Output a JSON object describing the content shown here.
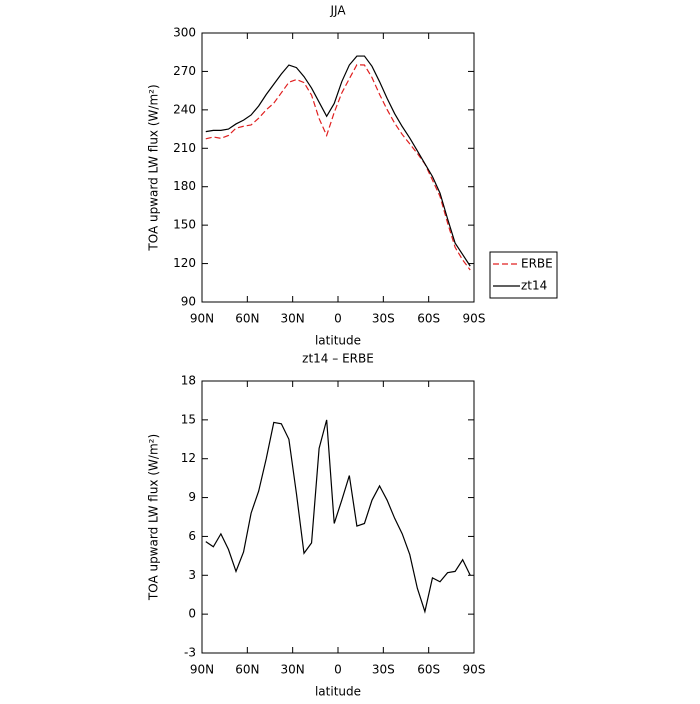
{
  "chart_data": [
    {
      "type": "line",
      "title": "JJA",
      "xlabel": "latitude",
      "ylabel": "TOA upward LW flux (W/m²)",
      "x": [
        87.5,
        82.5,
        77.5,
        72.5,
        67.5,
        62.5,
        57.5,
        52.5,
        47.5,
        42.5,
        37.5,
        32.5,
        27.5,
        22.5,
        17.5,
        12.5,
        7.5,
        2.5,
        -2.5,
        -7.5,
        -12.5,
        -17.5,
        -22.5,
        -27.5,
        -32.5,
        -37.5,
        -42.5,
        -47.5,
        -52.5,
        -57.5,
        -62.5,
        -67.5,
        -72.5,
        -77.5,
        -82.5,
        -87.5
      ],
      "series": [
        {
          "name": "ERBE",
          "color": "#e02020",
          "dashed": true,
          "values": [
            217.4,
            218.8,
            217.8,
            220,
            225.7,
            227.2,
            228.2,
            233.5,
            240,
            245.2,
            253.3,
            261.5,
            263.7,
            261.3,
            251.5,
            233.2,
            220,
            238,
            253.2,
            264.3,
            275.2,
            275,
            265.2,
            252.1,
            240.2,
            229.6,
            220.8,
            213.4,
            206,
            197.8,
            185.2,
            172.5,
            151.8,
            132.7,
            122.8,
            115
          ]
        },
        {
          "name": "zt14",
          "color": "#000000",
          "dashed": false,
          "values": [
            223,
            224,
            224,
            225,
            229,
            232,
            236,
            243,
            252,
            260,
            268,
            275,
            273,
            266,
            257,
            246,
            235,
            245,
            262,
            275,
            282,
            282,
            274,
            262,
            249,
            237,
            227,
            218,
            208,
            198,
            188,
            175,
            155,
            136,
            127,
            118
          ]
        }
      ],
      "xlim": [
        90,
        -90
      ],
      "xticks": [
        {
          "value": 90,
          "label": "90N"
        },
        {
          "value": 60,
          "label": "60N"
        },
        {
          "value": 30,
          "label": "30N"
        },
        0,
        {
          "value": -30,
          "label": "30S"
        },
        {
          "value": -60,
          "label": "60S"
        },
        {
          "value": -90,
          "label": "90S"
        }
      ],
      "ylim": [
        90,
        300
      ],
      "yticks": [
        90,
        120,
        150,
        180,
        210,
        240,
        270,
        300
      ],
      "legend": "outside-right"
    },
    {
      "type": "line",
      "title": "zt14 – ERBE",
      "xlabel": "latitude",
      "ylabel": "TOA upward LW flux (W/m²)",
      "x": [
        87.5,
        82.5,
        77.5,
        72.5,
        67.5,
        62.5,
        57.5,
        52.5,
        47.5,
        42.5,
        37.5,
        32.5,
        27.5,
        22.5,
        17.5,
        12.5,
        7.5,
        2.5,
        -2.5,
        -7.5,
        -12.5,
        -17.5,
        -22.5,
        -27.5,
        -32.5,
        -37.5,
        -42.5,
        -47.5,
        -52.5,
        -57.5,
        -62.5,
        -67.5,
        -72.5,
        -77.5,
        -82.5,
        -87.5
      ],
      "series": [
        {
          "color": "#000000",
          "values": [
            5.6,
            5.2,
            6.2,
            5.0,
            3.3,
            4.8,
            7.8,
            9.5,
            12,
            14.8,
            14.7,
            13.5,
            9.3,
            4.7,
            5.5,
            12.8,
            15.0,
            7.0,
            8.8,
            10.7,
            6.8,
            7.0,
            8.8,
            9.9,
            8.8,
            7.4,
            6.2,
            4.6,
            2.0,
            0.2,
            2.8,
            2.5,
            3.2,
            3.3,
            4.2,
            3.0
          ]
        }
      ],
      "xlim": [
        90,
        -90
      ],
      "xticks": [
        {
          "value": 90,
          "label": "90N"
        },
        {
          "value": 60,
          "label": "60N"
        },
        {
          "value": 30,
          "label": "30N"
        },
        0,
        {
          "value": -30,
          "label": "30S"
        },
        {
          "value": -60,
          "label": "60S"
        },
        {
          "value": -90,
          "label": "90S"
        }
      ],
      "ylim": [
        -3,
        18
      ],
      "yticks": [
        -3,
        0,
        3,
        6,
        9,
        12,
        15,
        18
      ]
    }
  ]
}
